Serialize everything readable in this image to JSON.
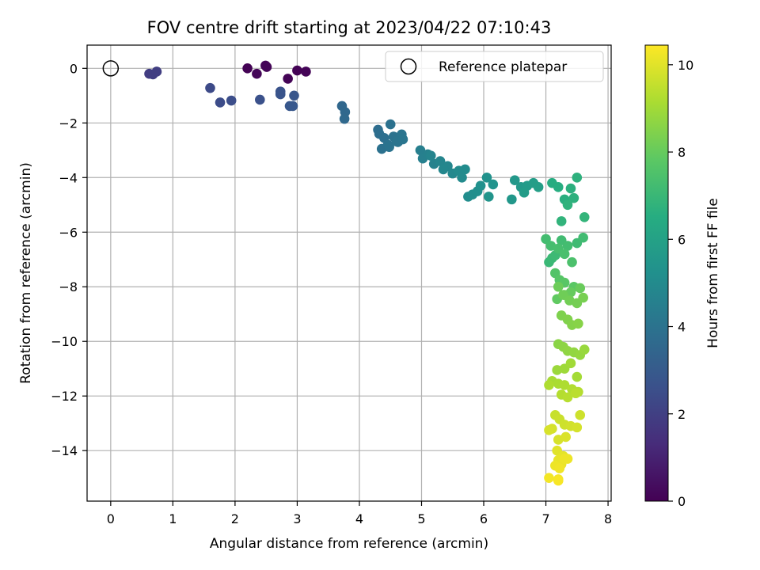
{
  "chart_data": {
    "type": "scatter",
    "title": "FOV centre drift starting at 2023/04/22 07:10:43",
    "xlabel": "Angular distance from reference (arcmin)",
    "ylabel": "Rotation from reference (arcmin)",
    "colorbar_label": "Hours from first FF file",
    "xlim": [
      -0.38,
      8.05
    ],
    "ylim": [
      -15.85,
      0.85
    ],
    "clim": [
      0,
      10.45
    ],
    "xticks": [
      "0",
      "1",
      "2",
      "3",
      "4",
      "5",
      "6",
      "7",
      "8"
    ],
    "yticks": [
      "0",
      "−2",
      "−4",
      "−6",
      "−8",
      "−10",
      "−12",
      "−14"
    ],
    "cticks": [
      "0",
      "2",
      "4",
      "6",
      "8",
      "10"
    ],
    "grid": true,
    "colormap": "viridis",
    "legend": {
      "placement": "top-right",
      "label": "Reference platepar"
    },
    "reference": {
      "x": 0,
      "y": 0
    },
    "series": [
      {
        "x": [
          0.62,
          0.68,
          0.74,
          1.6,
          1.76,
          1.94,
          2.4,
          2.2,
          2.35,
          2.49,
          2.51,
          2.85,
          3.0,
          3.14,
          2.73,
          2.73,
          2.95,
          2.88,
          2.93,
          3.72,
          3.77,
          3.76,
          4.3,
          4.32,
          4.4,
          4.5,
          4.55,
          4.62,
          4.68,
          4.7,
          4.36,
          4.46,
          4.48,
          4.6,
          4.98,
          5.02,
          5.1,
          5.2,
          5.15,
          5.3,
          5.42,
          5.35,
          5.5,
          5.6,
          5.7,
          5.75,
          5.82,
          5.9,
          5.95,
          5.65,
          6.05,
          6.15,
          6.08,
          6.5,
          6.6,
          6.7,
          6.65,
          6.8,
          6.88,
          6.45,
          7.1,
          7.2,
          7.3,
          7.4,
          7.5,
          7.25,
          7.35,
          7.45,
          7.62,
          7.05,
          7.1,
          7.15,
          7.25,
          7.35,
          7.5,
          7.6,
          7.08,
          7.2,
          7.3,
          7.42,
          7.0,
          7.15,
          7.22,
          7.3,
          7.45,
          7.18,
          7.3,
          7.4,
          7.55,
          7.2,
          7.28,
          7.38,
          7.5,
          7.6,
          7.25,
          7.35,
          7.42,
          7.52,
          7.2,
          7.28,
          7.35,
          7.45,
          7.55,
          7.62,
          7.18,
          7.3,
          7.4,
          7.5,
          7.1,
          7.2,
          7.3,
          7.42,
          7.52,
          7.05,
          7.25,
          7.35,
          7.48,
          7.15,
          7.22,
          7.3,
          7.4,
          7.5,
          7.55,
          7.1,
          7.2,
          7.32,
          7.05,
          7.18,
          7.28,
          7.2,
          7.25,
          7.3,
          7.15,
          7.22,
          7.35,
          7.2,
          7.05,
          7.2
        ],
        "y": [
          -0.2,
          -0.22,
          -0.12,
          -0.72,
          -1.25,
          -1.18,
          -1.15,
          0.0,
          -0.2,
          0.1,
          0.05,
          -0.38,
          -0.08,
          -0.12,
          -0.85,
          -0.95,
          -1.0,
          -1.38,
          -1.38,
          -1.38,
          -1.6,
          -1.85,
          -2.25,
          -2.4,
          -2.55,
          -2.05,
          -2.5,
          -2.7,
          -2.42,
          -2.6,
          -2.95,
          -2.8,
          -2.88,
          -2.68,
          -3.0,
          -3.3,
          -3.15,
          -3.5,
          -3.2,
          -3.4,
          -3.58,
          -3.7,
          -3.85,
          -3.75,
          -3.7,
          -4.7,
          -4.62,
          -4.5,
          -4.3,
          -4.0,
          -4.0,
          -4.25,
          -4.7,
          -4.1,
          -4.35,
          -4.3,
          -4.55,
          -4.2,
          -4.35,
          -4.8,
          -4.2,
          -4.35,
          -4.8,
          -4.4,
          -4.0,
          -5.6,
          -5.0,
          -4.75,
          -5.45,
          -7.1,
          -6.95,
          -6.85,
          -6.3,
          -6.5,
          -6.4,
          -6.2,
          -6.5,
          -6.6,
          -6.8,
          -7.1,
          -6.25,
          -7.5,
          -7.75,
          -7.85,
          -8.0,
          -8.45,
          -8.3,
          -8.2,
          -8.05,
          -8.0,
          -8.3,
          -8.5,
          -8.6,
          -8.4,
          -9.05,
          -9.2,
          -9.4,
          -9.35,
          -10.1,
          -10.2,
          -10.35,
          -10.4,
          -10.5,
          -10.3,
          -11.05,
          -11.0,
          -10.8,
          -11.3,
          -11.45,
          -11.55,
          -11.6,
          -11.75,
          -11.85,
          -11.6,
          -11.95,
          -12.05,
          -11.9,
          -12.7,
          -12.85,
          -13.05,
          -13.1,
          -13.15,
          -12.7,
          -13.2,
          -13.6,
          -13.5,
          -13.25,
          -14.0,
          -14.2,
          -14.35,
          -14.5,
          -14.3,
          -14.55,
          -14.65,
          -14.3,
          -15.05,
          -15.0,
          -15.1
        ],
        "hours": [
          1.9,
          1.95,
          1.95,
          2.35,
          2.45,
          2.5,
          2.6,
          0.05,
          0.15,
          0.1,
          0.12,
          0.08,
          0.05,
          0.1,
          2.7,
          2.75,
          2.8,
          2.85,
          2.9,
          3.5,
          3.55,
          3.6,
          3.75,
          3.8,
          3.85,
          3.9,
          3.95,
          4.0,
          4.05,
          4.1,
          3.9,
          3.95,
          4.0,
          4.05,
          4.5,
          4.55,
          4.6,
          4.65,
          4.7,
          4.75,
          4.8,
          4.85,
          4.9,
          5.0,
          5.05,
          5.1,
          5.15,
          5.2,
          5.25,
          5.0,
          5.3,
          5.35,
          5.4,
          5.6,
          5.65,
          5.7,
          5.75,
          5.8,
          5.85,
          5.55,
          6.5,
          6.55,
          6.6,
          6.65,
          6.7,
          6.8,
          6.75,
          6.7,
          6.85,
          7.0,
          7.05,
          7.1,
          7.2,
          7.25,
          7.15,
          7.2,
          7.3,
          7.35,
          7.4,
          7.45,
          7.25,
          7.6,
          7.7,
          7.75,
          7.8,
          7.9,
          7.95,
          8.0,
          8.05,
          8.1,
          8.15,
          8.2,
          8.25,
          8.3,
          8.4,
          8.45,
          8.5,
          8.55,
          8.6,
          8.65,
          8.7,
          8.75,
          8.8,
          8.85,
          8.9,
          8.95,
          9.0,
          9.05,
          9.1,
          9.15,
          9.2,
          9.25,
          9.3,
          9.2,
          9.3,
          9.35,
          9.4,
          9.6,
          9.65,
          9.7,
          9.75,
          9.8,
          9.7,
          9.8,
          9.85,
          9.9,
          9.85,
          10.0,
          10.05,
          10.1,
          10.15,
          10.2,
          10.2,
          10.25,
          10.2,
          10.3,
          10.3,
          10.35
        ]
      }
    ]
  }
}
